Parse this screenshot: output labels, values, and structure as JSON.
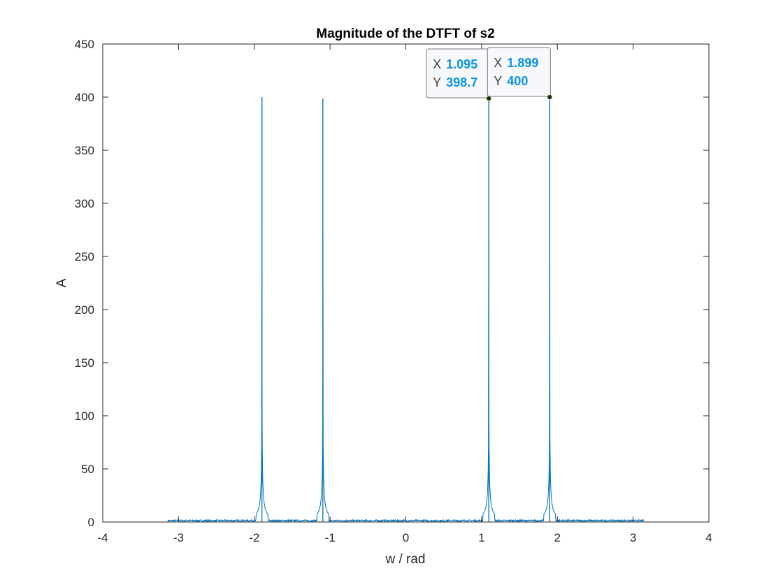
{
  "chart_data": {
    "type": "line",
    "title": "Magnitude of the DTFT of s2",
    "xlabel": "w / rad",
    "ylabel": "A",
    "xlim": [
      -4,
      4
    ],
    "ylim": [
      0,
      450
    ],
    "xticks": [
      -4,
      -3,
      -2,
      -1,
      0,
      1,
      2,
      3,
      4
    ],
    "xtick_labels": [
      "-4",
      "-3",
      "-2",
      "-1",
      "0",
      "1",
      "2",
      "3",
      "4"
    ],
    "yticks": [
      0,
      50,
      100,
      150,
      200,
      250,
      300,
      350,
      400,
      450
    ],
    "ytick_labels": [
      "0",
      "50",
      "100",
      "150",
      "200",
      "250",
      "300",
      "350",
      "400",
      "450"
    ],
    "grid": false,
    "line_color": "#0072BD",
    "signal_range": [
      -3.1416,
      3.1416
    ],
    "noise_floor": 1.5,
    "peaks": [
      {
        "x": -1.899,
        "y": 400
      },
      {
        "x": -1.095,
        "y": 398.7
      },
      {
        "x": 1.095,
        "y": 398.7
      },
      {
        "x": 1.899,
        "y": 400
      }
    ],
    "datatips": [
      {
        "x_key": "X",
        "y_key": "Y",
        "x_text": "1.095",
        "y_text": "398.7",
        "x": 1.095,
        "y": 398.7
      },
      {
        "x_key": "X",
        "y_key": "Y",
        "x_text": "1.899",
        "y_text": "400",
        "x": 1.899,
        "y": 400
      }
    ]
  }
}
